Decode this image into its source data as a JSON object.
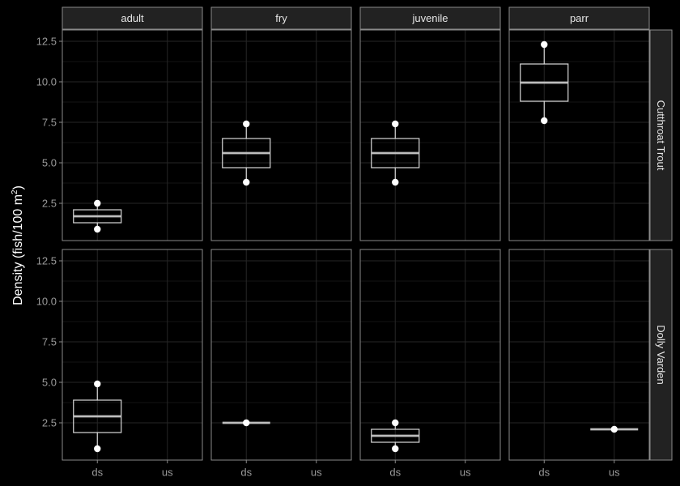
{
  "chart_data": {
    "type": "boxplot",
    "ylabel": "Density (fish/100 m²)",
    "ylabel_parts": {
      "main": "Density (fish/100 m",
      "superscript": "2",
      "close": ")"
    },
    "xlabel": "",
    "ylim": [
      0.2,
      13.2
    ],
    "yticks": [
      2.5,
      5.0,
      7.5,
      10.0,
      12.5
    ],
    "ytick_labels": [
      "2.5",
      "5.0",
      "7.5",
      "10.0",
      "12.5"
    ],
    "categories": [
      "ds",
      "us"
    ],
    "columns": [
      "adult",
      "fry",
      "juvenile",
      "parr"
    ],
    "rows": [
      "Cutthroat Trout",
      "Dolly Varden"
    ],
    "grid": true,
    "panels": [
      {
        "row": "Cutthroat Trout",
        "col": "adult",
        "boxes": [
          {
            "x": "ds",
            "q1": 1.3,
            "median": 1.7,
            "q3": 2.1,
            "whisker_low": 1.1,
            "whisker_high": 2.3,
            "outliers": [
              0.9,
              2.5
            ]
          }
        ]
      },
      {
        "row": "Cutthroat Trout",
        "col": "fry",
        "boxes": [
          {
            "x": "ds",
            "q1": 4.7,
            "median": 5.6,
            "q3": 6.5,
            "whisker_low": 3.9,
            "whisker_high": 7.4,
            "outliers": [
              3.8,
              7.4
            ]
          }
        ]
      },
      {
        "row": "Cutthroat Trout",
        "col": "juvenile",
        "boxes": [
          {
            "x": "ds",
            "q1": 4.7,
            "median": 5.6,
            "q3": 6.5,
            "whisker_low": 3.9,
            "whisker_high": 7.4,
            "outliers": [
              3.8,
              7.4
            ]
          }
        ]
      },
      {
        "row": "Cutthroat Trout",
        "col": "parr",
        "boxes": [
          {
            "x": "ds",
            "q1": 8.8,
            "median": 9.95,
            "q3": 11.1,
            "whisker_low": 7.7,
            "whisker_high": 12.3,
            "outliers": [
              7.6,
              12.3
            ]
          }
        ]
      },
      {
        "row": "Dolly Varden",
        "col": "adult",
        "boxes": [
          {
            "x": "ds",
            "q1": 1.9,
            "median": 2.9,
            "q3": 3.9,
            "whisker_low": 1.0,
            "whisker_high": 4.9,
            "outliers": [
              0.9,
              4.9
            ]
          }
        ]
      },
      {
        "row": "Dolly Varden",
        "col": "fry",
        "boxes": [
          {
            "x": "ds",
            "q1": 2.5,
            "median": 2.5,
            "q3": 2.5,
            "whisker_low": 2.5,
            "whisker_high": 2.5,
            "outliers": [
              2.5
            ]
          }
        ]
      },
      {
        "row": "Dolly Varden",
        "col": "juvenile",
        "boxes": [
          {
            "x": "ds",
            "q1": 1.3,
            "median": 1.7,
            "q3": 2.1,
            "whisker_low": 1.1,
            "whisker_high": 2.3,
            "outliers": [
              0.9,
              2.5
            ]
          }
        ]
      },
      {
        "row": "Dolly Varden",
        "col": "parr",
        "boxes": [
          {
            "x": "us",
            "q1": 2.1,
            "median": 2.1,
            "q3": 2.1,
            "whisker_low": 2.1,
            "whisker_high": 2.1,
            "outliers": [
              2.1
            ]
          }
        ]
      }
    ]
  },
  "colors": {
    "background": "#000000",
    "panel_background": "#000000",
    "panel_border": "#8a8a8a",
    "strip_background": "#222222",
    "strip_text": "#e6e6e6",
    "grid_major": "#262626",
    "grid_minor": "#141414",
    "box_stroke": "#d9d9d9",
    "median": "#bdbdbd",
    "point": "#ffffff",
    "tick_text": "#9a9a9a",
    "axis_title": "#ffffff"
  }
}
